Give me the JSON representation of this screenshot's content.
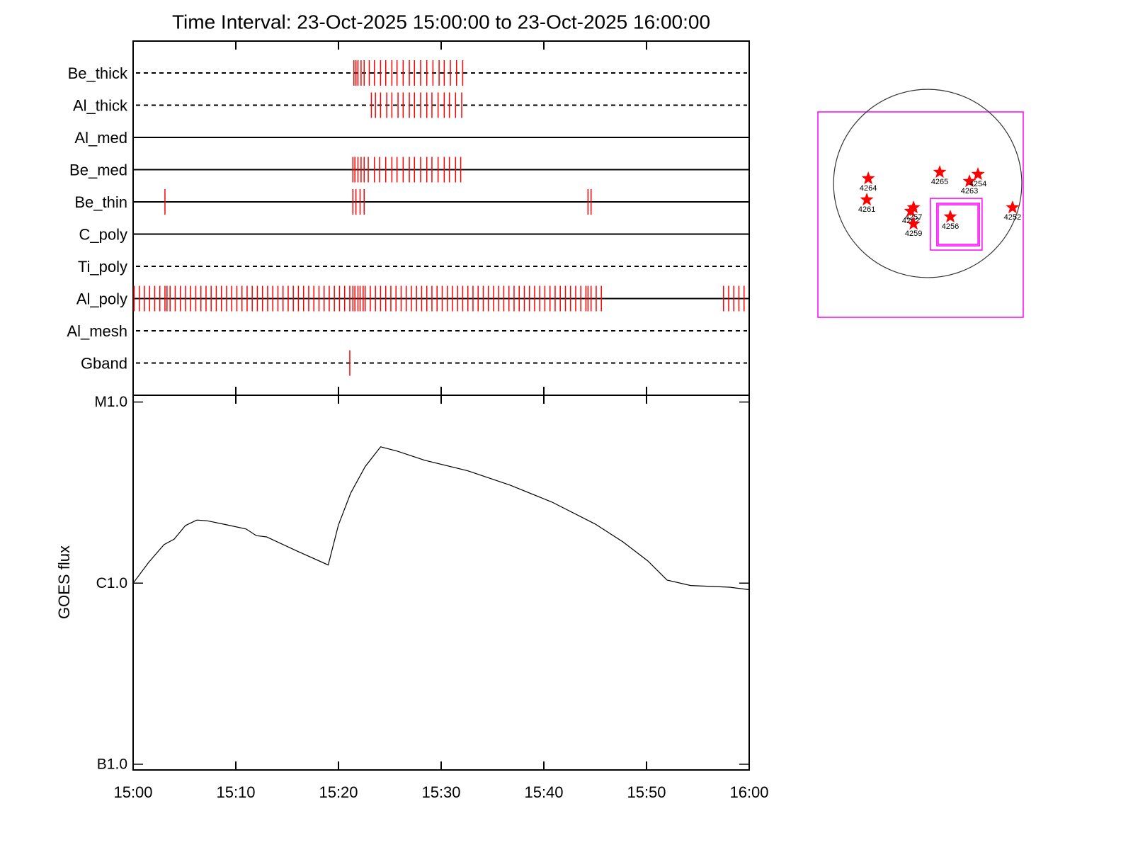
{
  "chart_data": [
    {
      "type": "events",
      "title": "Time Interval: 23-Oct-2025 15:00:00 to 23-Oct-2025 16:00:00",
      "xlim": [
        0,
        60
      ],
      "event_color": "#ff0000",
      "series": [
        {
          "name": "Be_thick",
          "style": "dashed",
          "events": [
            21.5,
            21.7,
            21.9,
            22.2,
            22.5,
            23.0,
            23.5,
            24.1,
            24.6,
            25.2,
            25.7,
            26.3,
            26.9,
            27.4,
            28.0,
            28.6,
            29.2,
            29.8,
            30.3,
            30.9,
            31.5,
            32.1
          ]
        },
        {
          "name": "Al_thick",
          "style": "dashed",
          "events": [
            23.2,
            23.6,
            24.1,
            24.7,
            25.2,
            25.8,
            26.3,
            26.9,
            27.4,
            28.0,
            28.6,
            29.1,
            29.7,
            30.3,
            30.8,
            31.4,
            32.0
          ]
        },
        {
          "name": "Al_med",
          "style": "solid",
          "events": []
        },
        {
          "name": "Be_med",
          "style": "solid",
          "events": [
            21.4,
            21.6,
            21.9,
            22.2,
            22.5,
            22.9,
            23.5,
            24.0,
            24.6,
            25.2,
            25.7,
            26.3,
            26.9,
            27.4,
            28.0,
            28.6,
            29.1,
            29.7,
            30.3,
            30.8,
            31.4,
            31.9
          ]
        },
        {
          "name": "Be_thin",
          "style": "solid",
          "events": [
            3.1,
            21.4,
            21.7,
            22.1,
            22.5,
            44.3,
            44.6
          ]
        },
        {
          "name": "C_poly",
          "style": "solid",
          "events": []
        },
        {
          "name": "Ti_poly",
          "style": "dashed",
          "events": []
        },
        {
          "name": "Al_poly",
          "style": "solid",
          "events": [
            0.1,
            0.6,
            1.1,
            1.6,
            2.1,
            2.6,
            3.1,
            3.3,
            3.6,
            4.1,
            4.6,
            5.1,
            5.6,
            6.1,
            6.6,
            7.1,
            7.6,
            8.1,
            8.6,
            9.1,
            9.6,
            10.1,
            10.6,
            11.1,
            11.6,
            12.1,
            12.6,
            13.1,
            13.6,
            14.1,
            14.6,
            15.1,
            15.6,
            16.1,
            16.6,
            17.1,
            17.6,
            18.1,
            18.6,
            19.1,
            19.6,
            20.1,
            20.6,
            21.1,
            21.4,
            21.6,
            21.9,
            22.1,
            22.4,
            22.6,
            23.1,
            23.6,
            24.1,
            24.6,
            25.1,
            25.6,
            26.1,
            26.6,
            27.1,
            27.6,
            28.1,
            28.6,
            29.1,
            29.6,
            30.1,
            30.6,
            31.1,
            31.6,
            32.1,
            32.6,
            33.1,
            33.6,
            34.1,
            34.6,
            35.1,
            35.6,
            36.1,
            36.6,
            37.1,
            37.6,
            38.1,
            38.6,
            39.1,
            39.6,
            40.1,
            40.6,
            41.1,
            41.6,
            42.1,
            42.6,
            43.1,
            43.6,
            44.1,
            44.3,
            44.6,
            45.1,
            45.6,
            57.5,
            58.0,
            58.5,
            59.0,
            59.5
          ]
        },
        {
          "name": "Al_mesh",
          "style": "dashed",
          "events": []
        },
        {
          "name": "Gband",
          "style": "dashed",
          "events": [
            21.1
          ]
        }
      ]
    },
    {
      "type": "line",
      "ylabel": "GOES flux",
      "log_y": true,
      "color": "#000000",
      "xlim": [
        0,
        60
      ],
      "xticks": [
        {
          "value": 0,
          "label": "15:00"
        },
        {
          "value": 10,
          "label": "15:10"
        },
        {
          "value": 20,
          "label": "15:20"
        },
        {
          "value": 30,
          "label": "15:30"
        },
        {
          "value": 40,
          "label": "15:40"
        },
        {
          "value": 50,
          "label": "15:50"
        },
        {
          "value": 60,
          "label": "16:00"
        }
      ],
      "ylim": [
        9.3e-08,
        1.09e-05
      ],
      "yticks": [
        {
          "value": 1e-07,
          "label": "B1.0"
        },
        {
          "value": 1e-06,
          "label": "C1.0"
        },
        {
          "value": 1e-05,
          "label": "M1.0"
        }
      ],
      "x": [
        0,
        1.5,
        3.0,
        4.0,
        5.1,
        6.2,
        7.2,
        9.1,
        11.0,
        12.0,
        13.0,
        16.0,
        19.0,
        20.0,
        21.2,
        22.6,
        24.1,
        25.7,
        28.4,
        32.6,
        36.7,
        40.8,
        45.0,
        47.7,
        50.1,
        52.0,
        54.3,
        58.1,
        60
      ],
      "values": [
        1e-06,
        1.3e-06,
        1.63e-06,
        1.75e-06,
        2.08e-06,
        2.23e-06,
        2.21e-06,
        2.1e-06,
        1.99e-06,
        1.83e-06,
        1.8e-06,
        1.5e-06,
        1.26e-06,
        2.1e-06,
        3.15e-06,
        4.4e-06,
        5.66e-06,
        5.36e-06,
        4.77e-06,
        4.17e-06,
        3.48e-06,
        2.8e-06,
        2.12e-06,
        1.69e-06,
        1.33e-06,
        1.04e-06,
        9.7e-07,
        9.5e-07,
        9.2e-07
      ]
    },
    {
      "type": "map",
      "xlim": [
        -1120,
        975
      ],
      "ylim": [
        -1365,
        730
      ],
      "limb_radius": 960,
      "box_color": "#ff00ff",
      "marker_color": "#ff0000",
      "boxes": [
        {
          "x": [
            28,
            555
          ],
          "y": [
            -679,
            -152
          ]
        },
        {
          "x": [
            108,
            513
          ],
          "y": [
            -621,
            -217
          ]
        },
        {
          "x": [
            93,
            528
          ],
          "y": [
            -636,
            -202
          ]
        }
      ],
      "points": [
        {
          "label": "4264",
          "x": -606,
          "y": 51
        },
        {
          "label": "4261",
          "x": -621,
          "y": -166
        },
        {
          "label": "4265",
          "x": 123,
          "y": 116
        },
        {
          "label": "4263",
          "x": 426,
          "y": 22
        },
        {
          "label": "4254",
          "x": 513,
          "y": 94
        },
        {
          "label": "4257",
          "x": -144,
          "y": -245
        },
        {
          "label": "4262",
          "x": -173,
          "y": -282
        },
        {
          "label": "4259",
          "x": -144,
          "y": -412
        },
        {
          "label": "4256",
          "x": 231,
          "y": -339
        },
        {
          "label": "4252",
          "x": 866,
          "y": -245
        }
      ]
    }
  ]
}
